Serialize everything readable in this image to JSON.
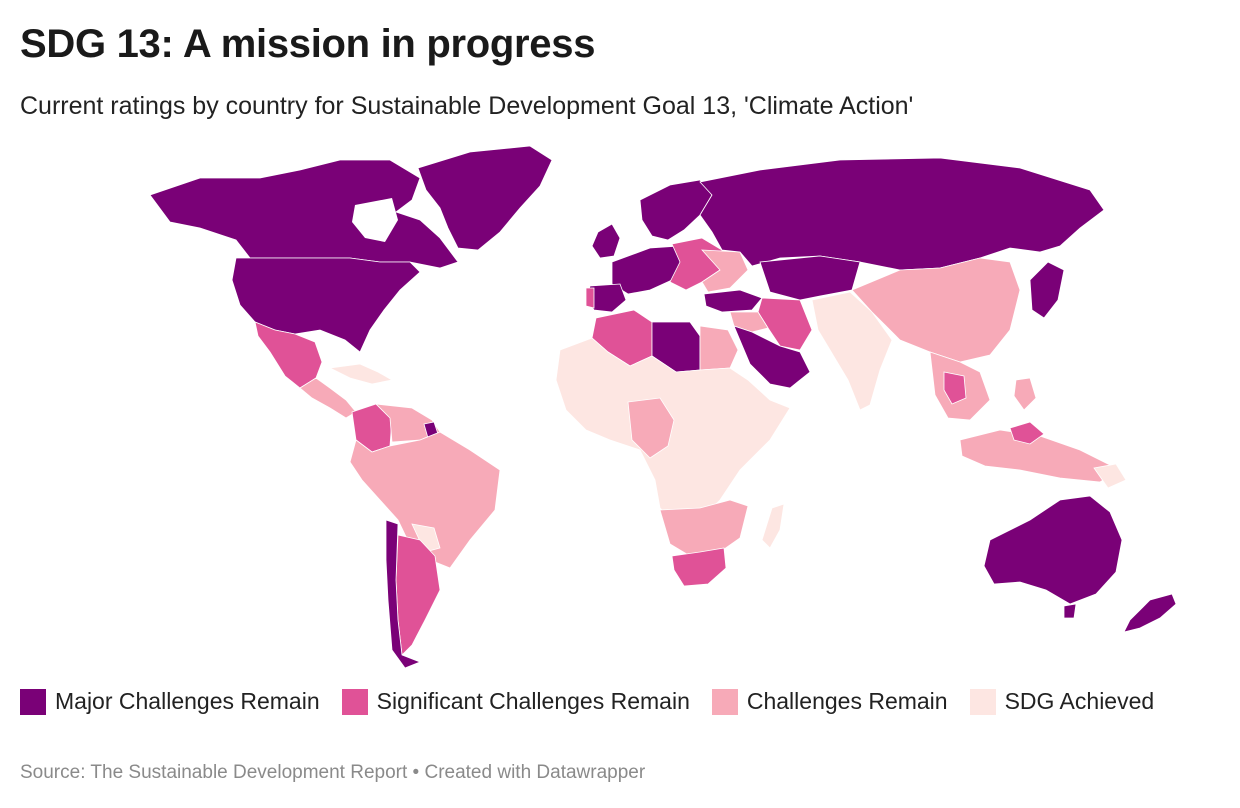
{
  "header": {
    "title": "SDG 13: A mission in progress",
    "subtitle": "Current ratings by country for Sustainable Development Goal 13, 'Climate Action'"
  },
  "legend": {
    "items": [
      {
        "label": "Major Challenges Remain",
        "color": "#7a0177"
      },
      {
        "label": "Significant Challenges Remain",
        "color": "#e05297"
      },
      {
        "label": "Challenges Remain",
        "color": "#f7aab8"
      },
      {
        "label": "SDG Achieved",
        "color": "#fde6e2"
      }
    ]
  },
  "footer": {
    "source": "Source: The Sustainable Development Report • Created with Datawrapper"
  }
}
